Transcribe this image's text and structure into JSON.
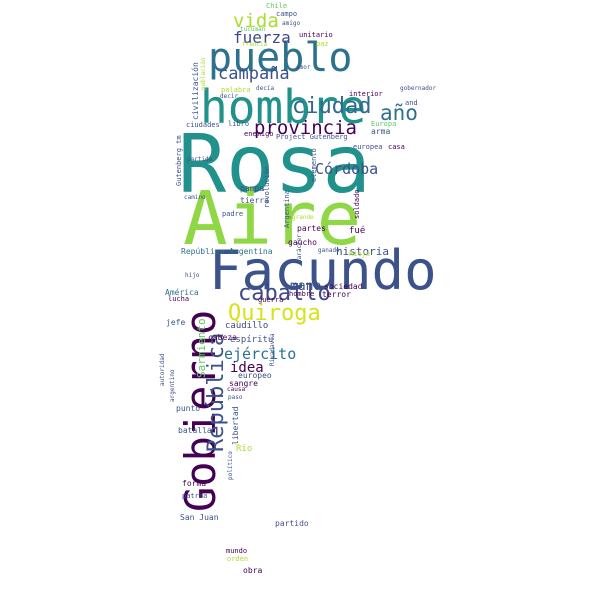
{
  "word_cloud": {
    "background": "#ffffff",
    "palette": {
      "dark_purple": "#440154",
      "indigo": "#3b528b",
      "blue": "#2c728e",
      "teal": "#21918c",
      "green": "#28ae80",
      "lime": "#5ec962",
      "yellow_green": "#addc30",
      "yellow": "#d8e219"
    },
    "words": [
      {
        "text": "Rosa",
        "color": "#21918c"
      },
      {
        "text": "Aire",
        "color": "#8fd744"
      },
      {
        "text": "Facundo",
        "color": "#3b528b"
      },
      {
        "text": "Gobierno",
        "color": "#440154"
      },
      {
        "text": "hombre",
        "color": "#21918c"
      },
      {
        "text": "pueblo",
        "color": "#2c728e"
      },
      {
        "text": "Quiroga",
        "color": "#d8e219"
      },
      {
        "text": "República",
        "color": "#3b528b"
      },
      {
        "text": "provincia",
        "color": "#440154"
      },
      {
        "text": "ciudad",
        "color": "#31688e"
      },
      {
        "text": "caballo",
        "color": "#3e4989"
      },
      {
        "text": "año",
        "color": "#2c728e"
      },
      {
        "text": "campaña",
        "color": "#3b528b"
      },
      {
        "text": "vida",
        "color": "#addc30"
      },
      {
        "text": "fuerza",
        "color": "#3e4989"
      },
      {
        "text": "Córdoba",
        "color": "#3b528b"
      },
      {
        "text": "ejército",
        "color": "#2c728e"
      },
      {
        "text": "idea",
        "color": "#440154"
      },
      {
        "text": "mano",
        "color": "#3b528b"
      },
      {
        "text": "historia",
        "color": "#3b528b"
      },
      {
        "text": "sociedad",
        "color": "#440154"
      },
      {
        "text": "terror",
        "color": "#440154"
      },
      {
        "text": "caudillo",
        "color": "#3e4989"
      },
      {
        "text": "espíritu",
        "color": "#3b528b"
      },
      {
        "text": "cabeza",
        "color": "#440154"
      },
      {
        "text": "Sarmiento",
        "color": "#5ec962"
      },
      {
        "text": "sangre",
        "color": "#440154"
      },
      {
        "text": "europeo",
        "color": "#3b528b"
      },
      {
        "text": "libertad",
        "color": "#3b528b"
      },
      {
        "text": "Rio",
        "color": "#addc30"
      },
      {
        "text": "batalla",
        "color": "#3b528b"
      },
      {
        "text": "punto",
        "color": "#3b528b"
      },
      {
        "text": "forma",
        "color": "#440154"
      },
      {
        "text": "San Juan",
        "color": "#3b528b"
      },
      {
        "text": "partido",
        "color": "#3b528b"
      },
      {
        "text": "obra",
        "color": "#440154"
      },
      {
        "text": "mundo",
        "color": "#440154"
      },
      {
        "text": "orden",
        "color": "#addc30"
      },
      {
        "text": "patria",
        "color": "#3b528b"
      },
      {
        "text": "jefe",
        "color": "#3b528b"
      },
      {
        "text": "lucha",
        "color": "#440154"
      },
      {
        "text": "América",
        "color": "#2c728e"
      },
      {
        "text": "República Argentina",
        "color": "#2c728e"
      },
      {
        "text": "gaucho",
        "color": "#440154"
      },
      {
        "text": "partes",
        "color": "#440154"
      },
      {
        "text": "fué",
        "color": "#440154"
      },
      {
        "text": "tierra",
        "color": "#3b528b"
      },
      {
        "text": "padre",
        "color": "#3b528b"
      },
      {
        "text": "pampa",
        "color": "#3b528b"
      },
      {
        "text": "Argentina",
        "color": "#3b528b"
      },
      {
        "text": "revolución",
        "color": "#3b528b"
      },
      {
        "text": "soldado",
        "color": "#440154"
      },
      {
        "text": "Project Gutenberg",
        "color": "#3b528b"
      },
      {
        "text": "arma",
        "color": "#3b528b"
      },
      {
        "text": "casa",
        "color": "#440154"
      },
      {
        "text": "enemigo",
        "color": "#440154"
      },
      {
        "text": "libro",
        "color": "#3b528b"
      },
      {
        "text": "ciudades",
        "color": "#3b528b"
      },
      {
        "text": "civilización",
        "color": "#3b528b"
      },
      {
        "text": "palabra",
        "color": "#addc30"
      },
      {
        "text": "interior",
        "color": "#440154"
      },
      {
        "text": "unitario",
        "color": "#440154"
      },
      {
        "text": "paz",
        "color": "#addc30"
      },
      {
        "text": "campo",
        "color": "#3b528b"
      },
      {
        "text": "Chile",
        "color": "#5ec962"
      },
      {
        "text": "Europa",
        "color": "#5ec962"
      },
      {
        "text": "Rioja",
        "color": "#addc30"
      },
      {
        "text": "guerra",
        "color": "#440154"
      },
      {
        "text": "hombre",
        "color": "#440154"
      },
      {
        "text": "elemento",
        "color": "#3b528b"
      },
      {
        "text": "Gutenberg tm",
        "color": "#3b528b"
      },
      {
        "text": "and",
        "color": "#3b528b"
      },
      {
        "text": "europea",
        "color": "#3b528b"
      },
      {
        "text": "francia",
        "color": "#addc30"
      },
      {
        "text": "decía",
        "color": "#3b528b"
      },
      {
        "text": "amigo",
        "color": "#3b528b"
      },
      {
        "text": "tucuman",
        "color": "#5ec962"
      },
      {
        "text": "población",
        "color": "#addc30"
      },
      {
        "text": "autoridad",
        "color": "#3b528b"
      },
      {
        "text": "argentino",
        "color": "#3b528b"
      },
      {
        "text": "Rivadavia",
        "color": "#3b528b"
      },
      {
        "text": "gobernador",
        "color": "#3b528b"
      },
      {
        "text": "causa",
        "color": "#440154"
      },
      {
        "text": "paso",
        "color": "#3b528b"
      },
      {
        "text": "grande",
        "color": "#addc30"
      },
      {
        "text": "ganado",
        "color": "#3b528b"
      },
      {
        "text": "hijo",
        "color": "#3b528b"
      },
      {
        "text": "camino",
        "color": "#3b528b"
      },
      {
        "text": "político",
        "color": "#3b528b"
      },
      {
        "text": "partida",
        "color": "#3b528b"
      },
      {
        "text": "amor",
        "color": "#3b528b"
      },
      {
        "text": "carácter",
        "color": "#3b528b"
      },
      {
        "text": "decir",
        "color": "#3b528b"
      }
    ]
  }
}
